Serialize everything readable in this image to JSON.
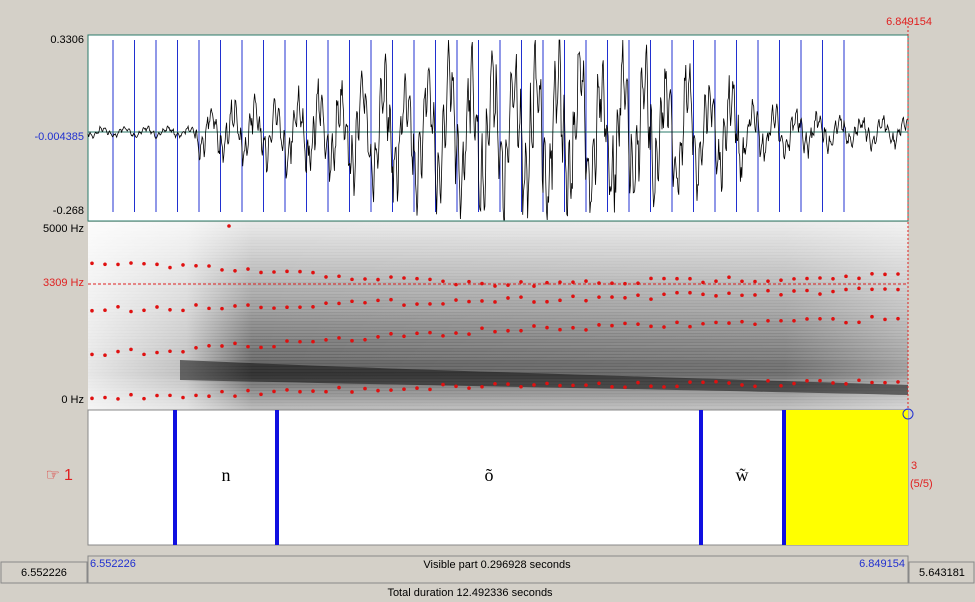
{
  "header": {
    "cursor_time": "6.849154"
  },
  "waveform": {
    "max": "0.3306",
    "cursor_value": "-0.004385",
    "min": "-0.268"
  },
  "spectrogram": {
    "top": "5000 Hz",
    "cursor_value": "3309 Hz",
    "bottom": "0 Hz"
  },
  "tier": {
    "number": "1",
    "intervals": [
      "n",
      "õ",
      "w̃"
    ],
    "interval_count": "3",
    "position": "(5/5)"
  },
  "footer": {
    "window_start": "6.552226",
    "visible_start": "6.552226",
    "visible_part": "Visible part 0.296928 seconds",
    "visible_end": "6.849154",
    "window_end": "5.643181",
    "total_duration": "Total duration 12.492336 seconds"
  }
}
